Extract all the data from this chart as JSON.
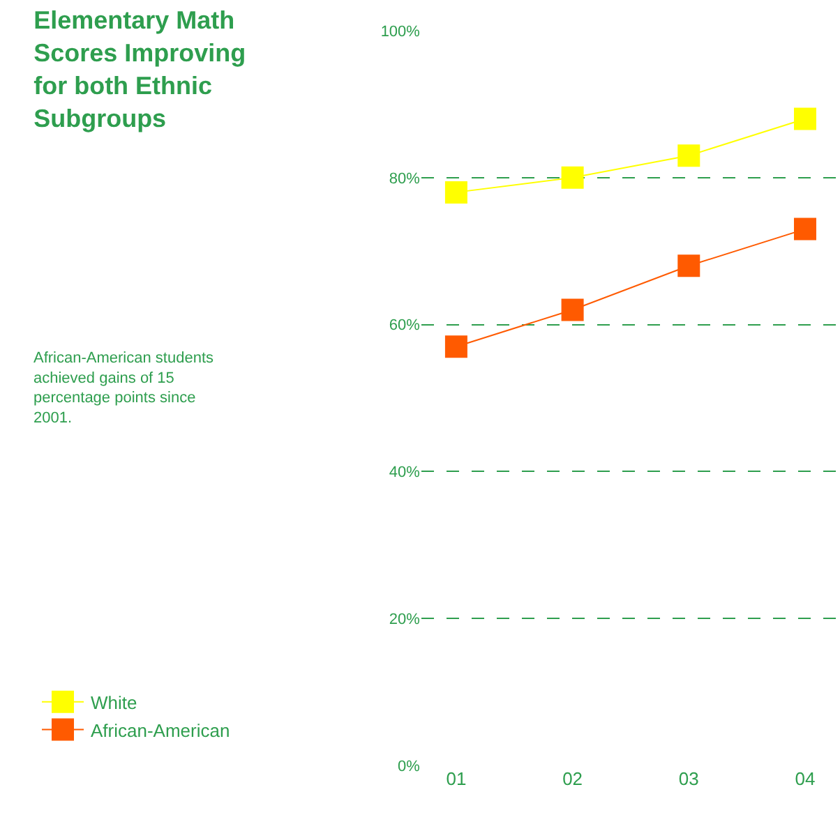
{
  "chart_data": {
    "type": "line",
    "title": "Elementary Math Scores Improving for both Ethnic Subgroups",
    "annotations": [
      "African-American students achieved gains of 15 percentage points since 2001."
    ],
    "categories": [
      "01",
      "02",
      "03",
      "04"
    ],
    "series": [
      {
        "name": "White",
        "color": "#ffff00",
        "values": [
          78,
          80,
          83,
          88
        ]
      },
      {
        "name": "African-American",
        "color": "#ff5a00",
        "values": [
          57,
          62,
          68,
          73
        ]
      }
    ],
    "ylim": [
      0,
      100
    ],
    "yticks": [
      {
        "value": 0,
        "label": "0%"
      },
      {
        "value": 20,
        "label": "20%"
      },
      {
        "value": 40,
        "label": "40%"
      },
      {
        "value": 60,
        "label": "60%"
      },
      {
        "value": 80,
        "label": "80%"
      },
      {
        "value": 100,
        "label": "100%"
      }
    ],
    "grid": "y",
    "legend": "bottom left",
    "marker": "square",
    "line_style": "solid"
  }
}
